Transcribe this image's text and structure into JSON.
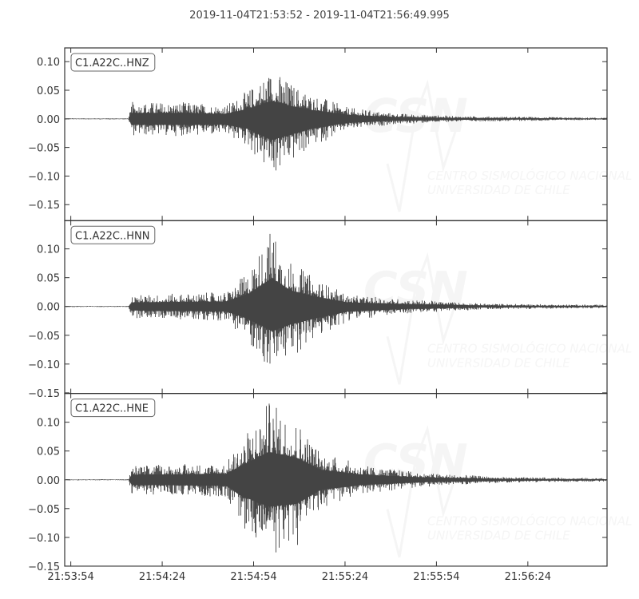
{
  "title": "2019-11-04T21:53:52  -  2019-11-04T21:56:49.995",
  "watermark": {
    "logo": "CSN",
    "line1": "CENTRO SISMOLÓGICO NACIONAL",
    "line2": "UNIVERSIDAD DE CHILE"
  },
  "colors": {
    "trace": "#444444",
    "axes": "#333333",
    "watermark": "#f5f5f5"
  },
  "chart_data": {
    "type": "line",
    "title": "2019-11-04T21:53:52  -  2019-11-04T21:56:49.995",
    "xlim": [
      "21:53:52",
      "21:56:49.995"
    ],
    "x_ticks": [
      "21:53:54",
      "21:54:24",
      "21:54:54",
      "21:55:24",
      "21:55:54",
      "21:56:24"
    ],
    "grid": false,
    "legend": "top-left label box per panel",
    "panels": [
      {
        "name": "C1.A22C..HNZ",
        "ylim": [
          -0.178,
          0.124
        ],
        "y_ticks": [
          "0.10",
          "0.05",
          "0.00",
          "−0.05",
          "−0.10",
          "−0.15"
        ],
        "y_tick_values": [
          0.1,
          0.05,
          0.0,
          -0.05,
          -0.1,
          -0.15
        ],
        "envelope": [
          {
            "t": "21:53:52",
            "max": 0.001,
            "min": -0.001
          },
          {
            "t": "21:54:13",
            "max": 0.001,
            "min": -0.001
          },
          {
            "t": "21:54:14",
            "max": 0.03,
            "min": -0.03
          },
          {
            "t": "21:54:30",
            "max": 0.03,
            "min": -0.03
          },
          {
            "t": "21:54:45",
            "max": 0.025,
            "min": -0.03
          },
          {
            "t": "21:54:52",
            "max": 0.05,
            "min": -0.05
          },
          {
            "t": "21:55:00",
            "max": 0.09,
            "min": -0.105
          },
          {
            "t": "21:55:06",
            "max": 0.065,
            "min": -0.08
          },
          {
            "t": "21:55:13",
            "max": 0.045,
            "min": -0.05
          },
          {
            "t": "21:55:25",
            "max": 0.02,
            "min": -0.02
          },
          {
            "t": "21:55:40",
            "max": 0.01,
            "min": -0.01
          },
          {
            "t": "21:56:00",
            "max": 0.005,
            "min": -0.005
          },
          {
            "t": "21:56:49",
            "max": 0.002,
            "min": -0.002
          }
        ]
      },
      {
        "name": "C1.A22C..HNN",
        "ylim": [
          -0.151,
          0.149
        ],
        "y_ticks": [
          "0.10",
          "0.05",
          "0.00",
          "−0.05",
          "−0.10",
          "−0.15"
        ],
        "y_tick_values": [
          0.1,
          0.05,
          0.0,
          -0.05,
          -0.1,
          -0.15
        ],
        "envelope": [
          {
            "t": "21:53:52",
            "max": 0.001,
            "min": -0.001
          },
          {
            "t": "21:54:13",
            "max": 0.001,
            "min": -0.001
          },
          {
            "t": "21:54:14",
            "max": 0.02,
            "min": -0.02
          },
          {
            "t": "21:54:45",
            "max": 0.025,
            "min": -0.025
          },
          {
            "t": "21:54:52",
            "max": 0.06,
            "min": -0.06
          },
          {
            "t": "21:55:00",
            "max": 0.14,
            "min": -0.122
          },
          {
            "t": "21:55:06",
            "max": 0.08,
            "min": -0.09
          },
          {
            "t": "21:55:14",
            "max": 0.05,
            "min": -0.06
          },
          {
            "t": "21:55:25",
            "max": 0.02,
            "min": -0.025
          },
          {
            "t": "21:55:45",
            "max": 0.012,
            "min": -0.012
          },
          {
            "t": "21:56:10",
            "max": 0.005,
            "min": -0.005
          },
          {
            "t": "21:56:49",
            "max": 0.003,
            "min": -0.003
          }
        ]
      },
      {
        "name": "C1.A22C..HNE",
        "ylim": [
          -0.15,
          0.15
        ],
        "y_ticks": [
          "0.10",
          "0.05",
          "0.00",
          "−0.05",
          "−0.10",
          "−0.15"
        ],
        "y_tick_values": [
          0.1,
          0.05,
          0.0,
          -0.05,
          -0.1,
          -0.15
        ],
        "envelope": [
          {
            "t": "21:53:52",
            "max": 0.001,
            "min": -0.001
          },
          {
            "t": "21:54:13",
            "max": 0.001,
            "min": -0.001
          },
          {
            "t": "21:54:14",
            "max": 0.025,
            "min": -0.025
          },
          {
            "t": "21:54:45",
            "max": 0.03,
            "min": -0.03
          },
          {
            "t": "21:54:50",
            "max": 0.07,
            "min": -0.08
          },
          {
            "t": "21:54:59",
            "max": 0.138,
            "min": -0.133
          },
          {
            "t": "21:55:08",
            "max": 0.11,
            "min": -0.12
          },
          {
            "t": "21:55:16",
            "max": 0.05,
            "min": -0.05
          },
          {
            "t": "21:55:30",
            "max": 0.025,
            "min": -0.025
          },
          {
            "t": "21:55:50",
            "max": 0.012,
            "min": -0.012
          },
          {
            "t": "21:56:15",
            "max": 0.005,
            "min": -0.005
          },
          {
            "t": "21:56:49",
            "max": 0.003,
            "min": -0.003
          }
        ]
      }
    ]
  }
}
